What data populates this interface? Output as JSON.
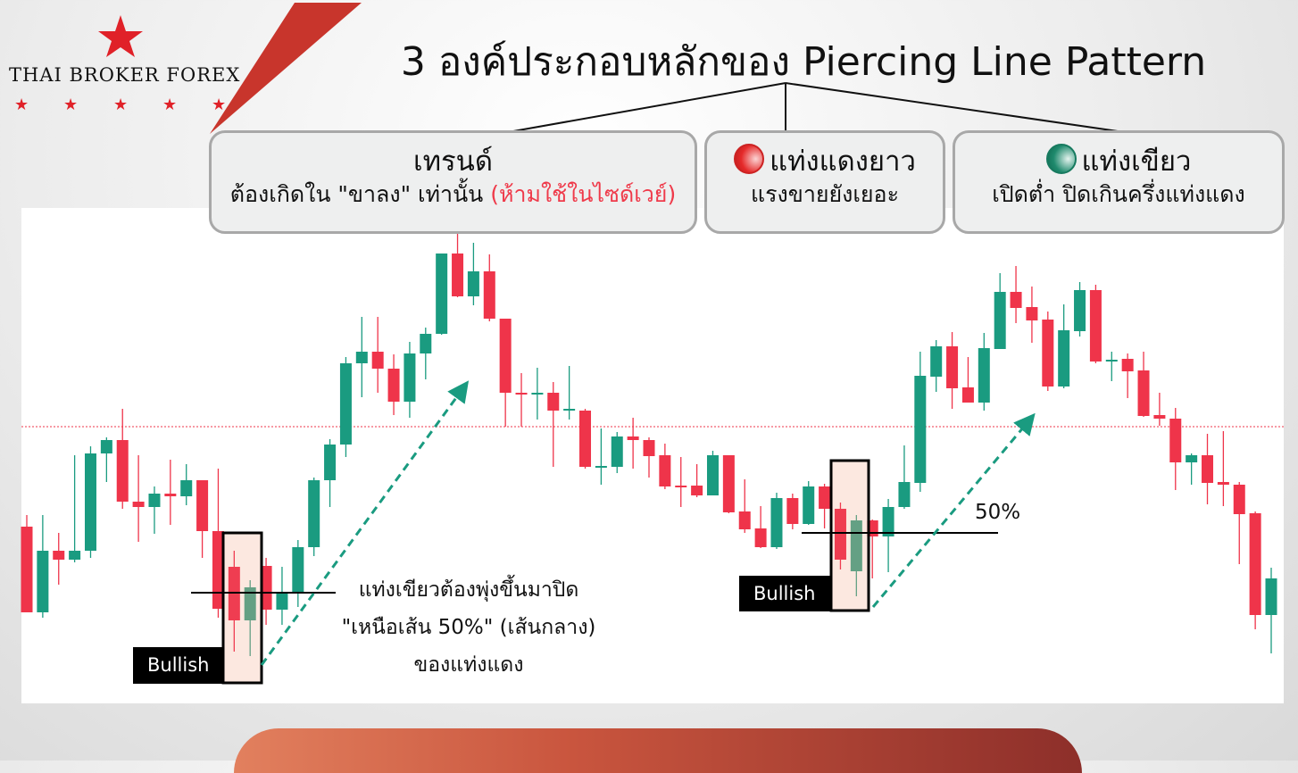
{
  "brand": {
    "name": "THAI BROKER FOREX",
    "accent": "#e02128"
  },
  "header": {
    "title": "3 องค์ประกอบหลักของ Piercing Line Pattern"
  },
  "cards": [
    {
      "heading": "เทรนด์",
      "sub": "ต้องเกิดใน \"ขาลง\" เท่านั้น",
      "warning": "(ห้ามใช้ในไซด์เวย์)",
      "warning_color": "#ef3a4a"
    },
    {
      "heading": "แท่งแดงยาว",
      "sub": "แรงขายยังเยอะ",
      "icon": "red-circle-icon"
    },
    {
      "heading": "แท่งเขียว",
      "sub": "เปิดต่ำ ปิดเกินครึ่งแท่งแดง",
      "icon": "green-circle-icon"
    }
  ],
  "annotations": {
    "left_label": "Bullish",
    "right_label": "Bullish",
    "fifty_label": "50%",
    "note_lines": [
      "แท่งเขียวต้องพุ่งขึ้นมาปิด",
      "\"เหนือเส้น 50%\" (เส้นกลาง)",
      "ของแท่งแดง"
    ]
  },
  "colors": {
    "up": "#1a9b80",
    "down": "#ef344a",
    "highlight": "#fbe4da",
    "arrow": "#1a9b80"
  },
  "chart_data": {
    "type": "candlestick",
    "ohlc_format": [
      "open",
      "high",
      "low",
      "close"
    ],
    "ylim": [
      200,
      740
    ],
    "reference_line": 522,
    "highlighted_pairs": [
      [
        13,
        14
      ],
      [
        51,
        52
      ]
    ],
    "candles": [
      [
        410,
        423,
        314,
        314
      ],
      [
        314,
        423,
        308,
        383
      ],
      [
        383,
        403,
        345,
        373
      ],
      [
        373,
        490,
        370,
        383
      ],
      [
        383,
        500,
        375,
        492
      ],
      [
        492,
        510,
        460,
        507
      ],
      [
        507,
        542,
        430,
        438
      ],
      [
        438,
        490,
        393,
        432
      ],
      [
        432,
        455,
        402,
        447
      ],
      [
        447,
        485,
        412,
        444
      ],
      [
        444,
        480,
        434,
        462
      ],
      [
        462,
        462,
        375,
        405
      ],
      [
        405,
        475,
        308,
        318
      ],
      [
        365,
        383,
        270,
        305
      ],
      [
        305,
        350,
        265,
        342
      ],
      [
        366,
        375,
        300,
        317
      ],
      [
        317,
        365,
        300,
        335
      ],
      [
        335,
        395,
        320,
        387
      ],
      [
        387,
        465,
        377,
        462
      ],
      [
        462,
        508,
        432,
        502
      ],
      [
        502,
        600,
        488,
        593
      ],
      [
        593,
        645,
        555,
        606
      ],
      [
        606,
        645,
        560,
        587
      ],
      [
        587,
        603,
        535,
        550
      ],
      [
        550,
        617,
        532,
        604
      ],
      [
        604,
        633,
        575,
        626
      ],
      [
        626,
        716,
        625,
        716
      ],
      [
        716,
        738,
        667,
        668
      ],
      [
        668,
        728,
        658,
        696
      ],
      [
        696,
        715,
        640,
        643
      ],
      [
        643,
        643,
        522,
        560
      ],
      [
        560,
        582,
        522,
        558
      ],
      [
        558,
        588,
        530,
        560
      ],
      [
        560,
        572,
        477,
        540
      ],
      [
        540,
        590,
        530,
        542
      ],
      [
        540,
        542,
        475,
        477
      ],
      [
        476,
        520,
        457,
        478
      ],
      [
        477,
        516,
        470,
        511
      ],
      [
        511,
        532,
        475,
        507
      ],
      [
        507,
        510,
        465,
        489
      ],
      [
        490,
        503,
        452,
        455
      ],
      [
        456,
        488,
        432,
        454
      ],
      [
        456,
        480,
        443,
        445
      ],
      [
        445,
        495,
        445,
        490
      ],
      [
        490,
        490,
        425,
        426
      ],
      [
        427,
        463,
        403,
        407
      ],
      [
        408,
        433,
        386,
        387
      ],
      [
        387,
        448,
        385,
        442
      ],
      [
        442,
        447,
        407,
        413
      ],
      [
        413,
        461,
        412,
        455
      ],
      [
        455,
        458,
        408,
        430
      ],
      [
        430,
        437,
        362,
        373
      ],
      [
        360,
        423,
        332,
        417
      ],
      [
        417,
        418,
        352,
        399
      ],
      [
        399,
        441,
        359,
        432
      ],
      [
        432,
        501,
        430,
        460
      ],
      [
        459,
        606,
        449,
        579
      ],
      [
        578,
        619,
        561,
        612
      ],
      [
        612,
        628,
        542,
        565
      ],
      [
        566,
        600,
        549,
        549
      ],
      [
        549,
        627,
        540,
        610
      ],
      [
        609,
        694,
        609,
        673
      ],
      [
        673,
        702,
        638,
        655
      ],
      [
        656,
        679,
        616,
        641
      ],
      [
        642,
        651,
        562,
        567
      ],
      [
        567,
        659,
        565,
        630
      ],
      [
        629,
        684,
        623,
        675
      ],
      [
        675,
        681,
        593,
        595
      ],
      [
        595,
        606,
        573,
        597
      ],
      [
        598,
        604,
        554,
        584
      ],
      [
        585,
        606,
        533,
        534
      ],
      [
        535,
        560,
        523,
        531
      ],
      [
        531,
        543,
        451,
        482
      ],
      [
        482,
        492,
        457,
        490
      ],
      [
        490,
        514,
        435,
        459
      ],
      [
        460,
        517,
        433,
        457
      ],
      [
        457,
        460,
        368,
        424
      ],
      [
        425,
        427,
        295,
        311
      ],
      [
        311,
        364,
        268,
        352
      ]
    ]
  }
}
